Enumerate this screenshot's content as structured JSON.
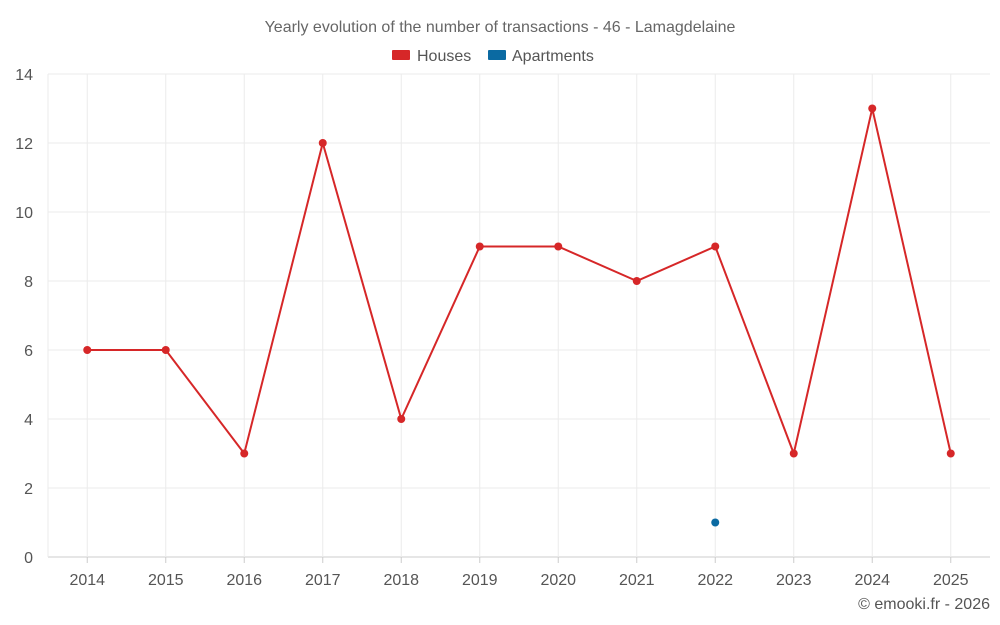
{
  "chart_data": {
    "type": "line",
    "title": "Yearly evolution of the number of transactions - 46 - Lamagdelaine",
    "categories": [
      "2014",
      "2015",
      "2016",
      "2017",
      "2018",
      "2019",
      "2020",
      "2021",
      "2022",
      "2023",
      "2024",
      "2025"
    ],
    "series": [
      {
        "name": "Houses",
        "color": "#d62728",
        "values": [
          6,
          6,
          3,
          12,
          4,
          9,
          9,
          8,
          9,
          3,
          13,
          3
        ]
      },
      {
        "name": "Apartments",
        "color": "#0b6aa2",
        "values": [
          null,
          null,
          null,
          null,
          null,
          null,
          null,
          null,
          1,
          null,
          null,
          null
        ]
      }
    ],
    "ylim": [
      0,
      14
    ],
    "yticks": [
      0,
      2,
      4,
      6,
      8,
      10,
      12,
      14
    ],
    "xlabel": "",
    "ylabel": "",
    "grid": true,
    "legend_position": "top-center"
  },
  "credit": "© emooki.fr - 2026"
}
